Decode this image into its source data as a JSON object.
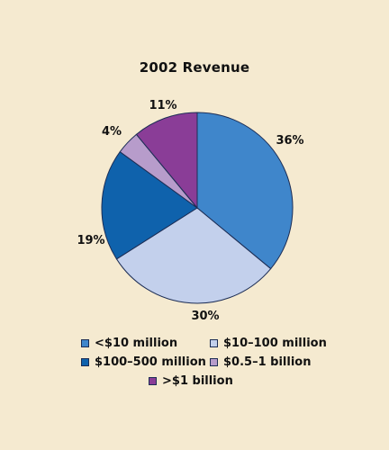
{
  "chart_data": {
    "type": "pie",
    "title": "2002 Revenue",
    "slices": [
      {
        "label": "<$10 million",
        "value": 36,
        "display": "36%",
        "color": "#3f86cb"
      },
      {
        "label": "$10–100 million",
        "value": 30,
        "display": "30%",
        "color": "#c3d0ec"
      },
      {
        "label": "$100–500 million",
        "value": 19,
        "display": "19%",
        "color": "#0f62ac"
      },
      {
        "label": "$0.5–1 billion",
        "value": 4,
        "display": "4%",
        "color": "#b79ccb"
      },
      {
        "label": ">$1 billion",
        "value": 11,
        "display": "11%",
        "color": "#8a3d97"
      }
    ],
    "legend_placement": "bottom",
    "start_angle": "top",
    "direction": "clockwise"
  }
}
